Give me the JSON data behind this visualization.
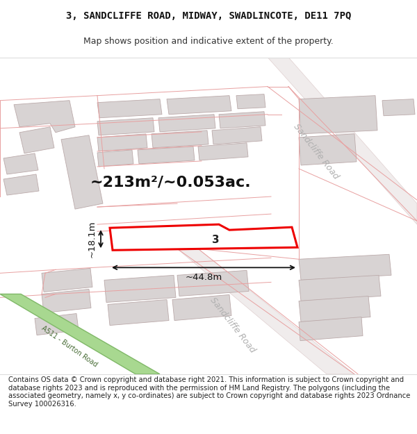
{
  "title_line1": "3, SANDCLIFFE ROAD, MIDWAY, SWADLINCOTE, DE11 7PQ",
  "title_line2": "Map shows position and indicative extent of the property.",
  "footer_text": "Contains OS data © Crown copyright and database right 2021. This information is subject to Crown copyright and database rights 2023 and is reproduced with the permission of HM Land Registry. The polygons (including the associated geometry, namely x, y co-ordinates) are subject to Crown copyright and database rights 2023 Ordnance Survey 100026316.",
  "area_label": "~213m²/~0.053ac.",
  "width_label": "~44.8m",
  "height_label": "~18.1m",
  "property_number": "3",
  "map_bg": "#faf8f8",
  "road_line_color": "#e8a0a0",
  "building_fill": "#d8d3d3",
  "building_edge": "#bbaaaa",
  "highlight_fill": "#ffffff",
  "highlight_stroke": "#ee0000",
  "green_fill": "#a8d890",
  "green_stroke": "#80b868",
  "arrow_color": "#111111",
  "sandcliffe_road_color": "#bbbbbb",
  "title_fontsize": 10,
  "subtitle_fontsize": 9,
  "footer_fontsize": 7.2,
  "area_fontsize": 16,
  "dim_fontsize": 9.5,
  "road_label_fontsize": 9,
  "prop_label_fontsize": 11
}
